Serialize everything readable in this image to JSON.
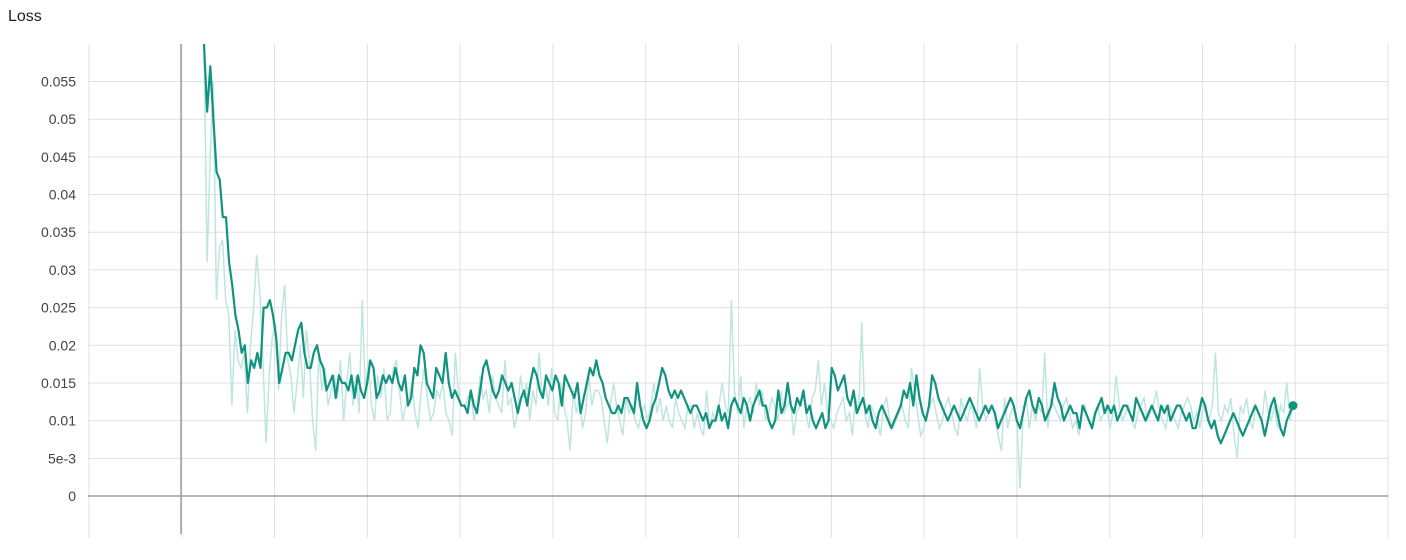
{
  "chart_data": {
    "type": "line",
    "title": "Loss",
    "xlabel": "",
    "ylabel": "",
    "ylim": [
      -0.005,
      0.059
    ],
    "y_ticks": [
      "0",
      "5e-3",
      "0.01",
      "0.015",
      "0.02",
      "0.025",
      "0.03",
      "0.035",
      "0.04",
      "0.045",
      "0.05",
      "0.055"
    ],
    "y_tick_values": [
      0,
      0.005,
      0.01,
      0.015,
      0.02,
      0.025,
      0.03,
      0.035,
      0.04,
      0.045,
      0.05,
      0.055
    ],
    "x_gridline_count": 14,
    "grid": true,
    "x_tick_labels_visible": false,
    "colors": {
      "smoothed": "#12937f",
      "raw": "#bfe5df",
      "axis": "#9e9e9e",
      "grid": "#e0e0e0"
    },
    "series": [
      {
        "role": "raw",
        "values": [
          0.075,
          0.031,
          0.045,
          0.055,
          0.026,
          0.033,
          0.034,
          0.026,
          0.024,
          0.012,
          0.022,
          0.018,
          0.017,
          0.019,
          0.011,
          0.02,
          0.025,
          0.032,
          0.027,
          0.018,
          0.007,
          0.016,
          0.021,
          0.023,
          0.014,
          0.024,
          0.028,
          0.018,
          0.016,
          0.011,
          0.015,
          0.02,
          0.013,
          0.022,
          0.018,
          0.01,
          0.006,
          0.019,
          0.014,
          0.017,
          0.012,
          0.014,
          0.016,
          0.013,
          0.018,
          0.01,
          0.015,
          0.019,
          0.012,
          0.016,
          0.011,
          0.026,
          0.014,
          0.018,
          0.012,
          0.01,
          0.016,
          0.013,
          0.017,
          0.01,
          0.011,
          0.017,
          0.018,
          0.014,
          0.01,
          0.012,
          0.013,
          0.015,
          0.011,
          0.009,
          0.014,
          0.017,
          0.013,
          0.01,
          0.011,
          0.014,
          0.013,
          0.015,
          0.011,
          0.01,
          0.008,
          0.019,
          0.014,
          0.012,
          0.012,
          0.013,
          0.014,
          0.01,
          0.012,
          0.016,
          0.013,
          0.014,
          0.011,
          0.016,
          0.013,
          0.012,
          0.011,
          0.018,
          0.012,
          0.013,
          0.009,
          0.011,
          0.016,
          0.013,
          0.015,
          0.01,
          0.014,
          0.012,
          0.019,
          0.013,
          0.015,
          0.012,
          0.017,
          0.011,
          0.01,
          0.015,
          0.012,
          0.01,
          0.006,
          0.014,
          0.011,
          0.013,
          0.009,
          0.011,
          0.016,
          0.012,
          0.014,
          0.014,
          0.013,
          0.01,
          0.007,
          0.012,
          0.015,
          0.012,
          0.01,
          0.008,
          0.013,
          0.011,
          0.012,
          0.01,
          0.009,
          0.011,
          0.012,
          0.01,
          0.012,
          0.015,
          0.011,
          0.013,
          0.01,
          0.012,
          0.01,
          0.009,
          0.013,
          0.011,
          0.01,
          0.009,
          0.012,
          0.012,
          0.009,
          0.011,
          0.009,
          0.008,
          0.014,
          0.009,
          0.011,
          0.01,
          0.012,
          0.015,
          0.012,
          0.011,
          0.026,
          0.014,
          0.011,
          0.016,
          0.009,
          0.012,
          0.013,
          0.011,
          0.015,
          0.012,
          0.014,
          0.01,
          0.011,
          0.013,
          0.012,
          0.01,
          0.014,
          0.011,
          0.012,
          0.013,
          0.008,
          0.011,
          0.012,
          0.014,
          0.011,
          0.009,
          0.013,
          0.014,
          0.018,
          0.012,
          0.015,
          0.011,
          0.01,
          0.009,
          0.011,
          0.012,
          0.013,
          0.01,
          0.011,
          0.008,
          0.013,
          0.011,
          0.023,
          0.011,
          0.009,
          0.012,
          0.011,
          0.01,
          0.008,
          0.012,
          0.013,
          0.01,
          0.009,
          0.01,
          0.011,
          0.012,
          0.01,
          0.009,
          0.017,
          0.014,
          0.011,
          0.008,
          0.009,
          0.011,
          0.012,
          0.013,
          0.011,
          0.009,
          0.01,
          0.012,
          0.013,
          0.011,
          0.009,
          0.008,
          0.013,
          0.011,
          0.01,
          0.012,
          0.011,
          0.009,
          0.017,
          0.012,
          0.01,
          0.011,
          0.012,
          0.01,
          0.008,
          0.006,
          0.013,
          0.009,
          0.011,
          0.012,
          0.01,
          0.001,
          0.011,
          0.013,
          0.009,
          0.012,
          0.01,
          0.012,
          0.011,
          0.019,
          0.009,
          0.013,
          0.012,
          0.011,
          0.01,
          0.012,
          0.013,
          0.011,
          0.009,
          0.01,
          0.008,
          0.011,
          0.012,
          0.01,
          0.009,
          0.011,
          0.012,
          0.01,
          0.011,
          0.012,
          0.009,
          0.011,
          0.016,
          0.012,
          0.01,
          0.011,
          0.012,
          0.01,
          0.009,
          0.011,
          0.012,
          0.013,
          0.01,
          0.011,
          0.012,
          0.014,
          0.011,
          0.01,
          0.009,
          0.012,
          0.011,
          0.01,
          0.009,
          0.011,
          0.012,
          0.013,
          0.012,
          0.01,
          0.011,
          0.009,
          0.012,
          0.011,
          0.01,
          0.012,
          0.019,
          0.011,
          0.01,
          0.012,
          0.011,
          0.013,
          0.008,
          0.005,
          0.012,
          0.011,
          0.013,
          0.01,
          0.009,
          0.012,
          0.011,
          0.01,
          0.014,
          0.011,
          0.01,
          0.012,
          0.009,
          0.012,
          0.011,
          0.015,
          0.01,
          0.012
        ]
      },
      {
        "role": "smoothed",
        "values": [
          0.06,
          0.051,
          0.057,
          0.05,
          0.043,
          0.042,
          0.037,
          0.037,
          0.031,
          0.028,
          0.024,
          0.022,
          0.019,
          0.02,
          0.015,
          0.018,
          0.017,
          0.019,
          0.017,
          0.025,
          0.025,
          0.026,
          0.024,
          0.021,
          0.015,
          0.017,
          0.019,
          0.019,
          0.018,
          0.02,
          0.022,
          0.023,
          0.019,
          0.017,
          0.017,
          0.019,
          0.02,
          0.018,
          0.017,
          0.014,
          0.015,
          0.016,
          0.013,
          0.016,
          0.015,
          0.015,
          0.014,
          0.016,
          0.013,
          0.016,
          0.014,
          0.013,
          0.015,
          0.018,
          0.017,
          0.013,
          0.014,
          0.016,
          0.015,
          0.016,
          0.015,
          0.017,
          0.015,
          0.014,
          0.016,
          0.012,
          0.013,
          0.017,
          0.016,
          0.02,
          0.019,
          0.015,
          0.014,
          0.013,
          0.017,
          0.016,
          0.015,
          0.019,
          0.015,
          0.013,
          0.014,
          0.013,
          0.012,
          0.012,
          0.011,
          0.014,
          0.012,
          0.011,
          0.014,
          0.017,
          0.018,
          0.016,
          0.014,
          0.013,
          0.014,
          0.016,
          0.015,
          0.014,
          0.015,
          0.013,
          0.011,
          0.013,
          0.014,
          0.012,
          0.015,
          0.017,
          0.016,
          0.014,
          0.013,
          0.016,
          0.015,
          0.014,
          0.016,
          0.015,
          0.012,
          0.016,
          0.015,
          0.014,
          0.013,
          0.015,
          0.011,
          0.013,
          0.015,
          0.017,
          0.016,
          0.018,
          0.016,
          0.015,
          0.013,
          0.012,
          0.011,
          0.011,
          0.012,
          0.011,
          0.013,
          0.013,
          0.012,
          0.011,
          0.015,
          0.012,
          0.01,
          0.009,
          0.01,
          0.012,
          0.013,
          0.015,
          0.017,
          0.016,
          0.014,
          0.013,
          0.014,
          0.013,
          0.014,
          0.013,
          0.012,
          0.011,
          0.012,
          0.012,
          0.011,
          0.01,
          0.011,
          0.009,
          0.01,
          0.01,
          0.012,
          0.01,
          0.011,
          0.009,
          0.012,
          0.013,
          0.012,
          0.011,
          0.013,
          0.012,
          0.01,
          0.012,
          0.013,
          0.014,
          0.012,
          0.012,
          0.01,
          0.009,
          0.01,
          0.014,
          0.011,
          0.012,
          0.015,
          0.012,
          0.011,
          0.013,
          0.012,
          0.014,
          0.011,
          0.012,
          0.01,
          0.009,
          0.01,
          0.011,
          0.009,
          0.01,
          0.017,
          0.016,
          0.014,
          0.015,
          0.016,
          0.013,
          0.012,
          0.014,
          0.011,
          0.012,
          0.013,
          0.011,
          0.012,
          0.01,
          0.009,
          0.011,
          0.012,
          0.011,
          0.01,
          0.009,
          0.01,
          0.011,
          0.012,
          0.014,
          0.013,
          0.015,
          0.012,
          0.016,
          0.013,
          0.011,
          0.01,
          0.012,
          0.016,
          0.015,
          0.013,
          0.012,
          0.011,
          0.01,
          0.011,
          0.012,
          0.011,
          0.01,
          0.011,
          0.012,
          0.013,
          0.012,
          0.011,
          0.01,
          0.011,
          0.012,
          0.011,
          0.012,
          0.011,
          0.009,
          0.01,
          0.011,
          0.012,
          0.013,
          0.012,
          0.01,
          0.009,
          0.011,
          0.013,
          0.014,
          0.012,
          0.011,
          0.013,
          0.012,
          0.01,
          0.011,
          0.012,
          0.015,
          0.013,
          0.012,
          0.01,
          0.011,
          0.012,
          0.011,
          0.011,
          0.009,
          0.012,
          0.011,
          0.01,
          0.009,
          0.011,
          0.012,
          0.013,
          0.011,
          0.012,
          0.011,
          0.012,
          0.01,
          0.011,
          0.012,
          0.012,
          0.011,
          0.01,
          0.013,
          0.012,
          0.011,
          0.01,
          0.011,
          0.012,
          0.011,
          0.01,
          0.012,
          0.011,
          0.012,
          0.01,
          0.011,
          0.012,
          0.012,
          0.011,
          0.01,
          0.011,
          0.009,
          0.009,
          0.011,
          0.013,
          0.012,
          0.01,
          0.009,
          0.01,
          0.008,
          0.007,
          0.008,
          0.009,
          0.01,
          0.011,
          0.01,
          0.009,
          0.008,
          0.009,
          0.01,
          0.011,
          0.012,
          0.011,
          0.01,
          0.008,
          0.01,
          0.012,
          0.013,
          0.011,
          0.009,
          0.008,
          0.01,
          0.011,
          0.012
        ]
      }
    ]
  }
}
